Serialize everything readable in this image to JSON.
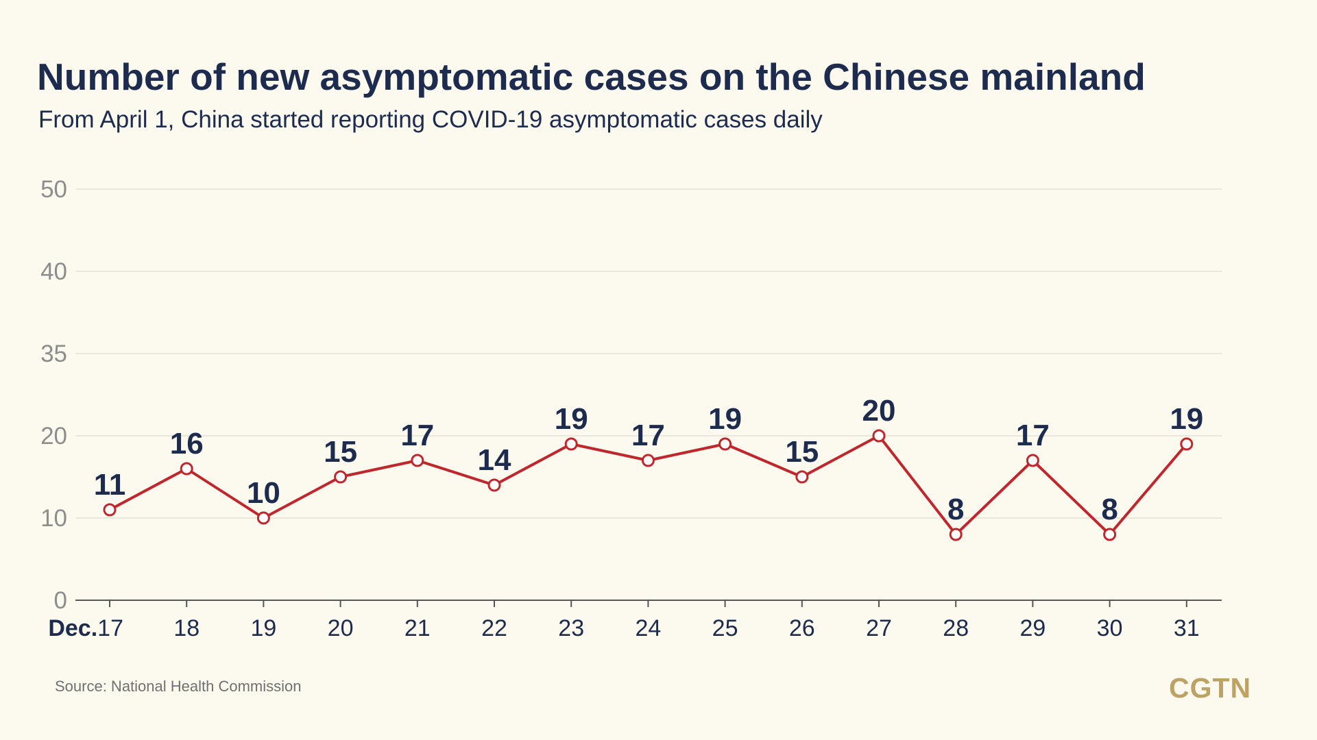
{
  "title": "Number of new asymptomatic cases on the Chinese mainland",
  "subtitle": "From April 1, China started reporting COVID-19 asymptomatic cases daily",
  "source": "Source: National Health Commission",
  "logo": "CGTN",
  "colors": {
    "background": "#fcf9ef",
    "line": "#c0272d",
    "text": "#1c2b4e",
    "grid": "#e4e1d6",
    "axis": "#555555",
    "logo": "#bda264"
  },
  "chart_data": {
    "type": "line",
    "title": "Number of new asymptomatic cases on the Chinese mainland",
    "subtitle": "From April 1, China started reporting COVID-19 asymptomatic cases daily",
    "xlabel": "",
    "ylabel": "",
    "x_first_prefix": "Dec.",
    "categories": [
      "17",
      "18",
      "19",
      "20",
      "21",
      "22",
      "23",
      "24",
      "25",
      "26",
      "27",
      "28",
      "29",
      "30",
      "31"
    ],
    "values": [
      11,
      16,
      10,
      15,
      17,
      14,
      19,
      17,
      19,
      15,
      20,
      8,
      17,
      8,
      19
    ],
    "y_ticks": [
      "0",
      "10",
      "20",
      "35",
      "40",
      "50"
    ],
    "grid": true,
    "legend": "none",
    "data_labels": true
  }
}
